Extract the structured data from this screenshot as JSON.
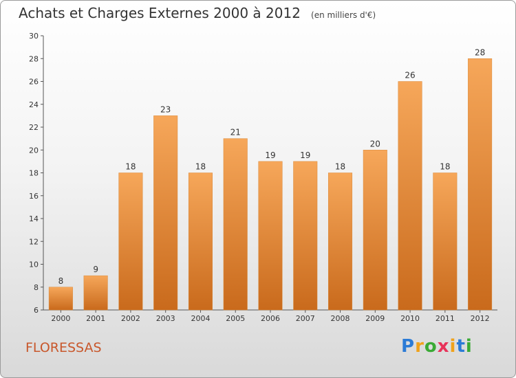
{
  "title": "Achats et Charges Externes 2000 à 2012",
  "unit": "(en milliers d'€)",
  "town": "FLORESSAS",
  "logo": {
    "letters": [
      "P",
      "r",
      "o",
      "x",
      "i",
      "t",
      "i"
    ],
    "colors": [
      "#2b7bd6",
      "#f0a21b",
      "#3aaa35",
      "#e8335a",
      "#f0a21b",
      "#2b7bd6",
      "#3aaa35"
    ]
  },
  "chart_data": {
    "type": "bar",
    "categories": [
      "2000",
      "2001",
      "2002",
      "2003",
      "2004",
      "2005",
      "2006",
      "2007",
      "2008",
      "2009",
      "2010",
      "2011",
      "2012"
    ],
    "values": [
      8,
      9,
      18,
      23,
      18,
      21,
      19,
      19,
      18,
      20,
      26,
      18,
      28
    ],
    "ylim": [
      6,
      30
    ],
    "yticks": [
      6,
      8,
      10,
      12,
      14,
      16,
      18,
      20,
      22,
      24,
      26,
      28,
      30
    ],
    "bar_color": "#f09a3e",
    "grid": false
  }
}
